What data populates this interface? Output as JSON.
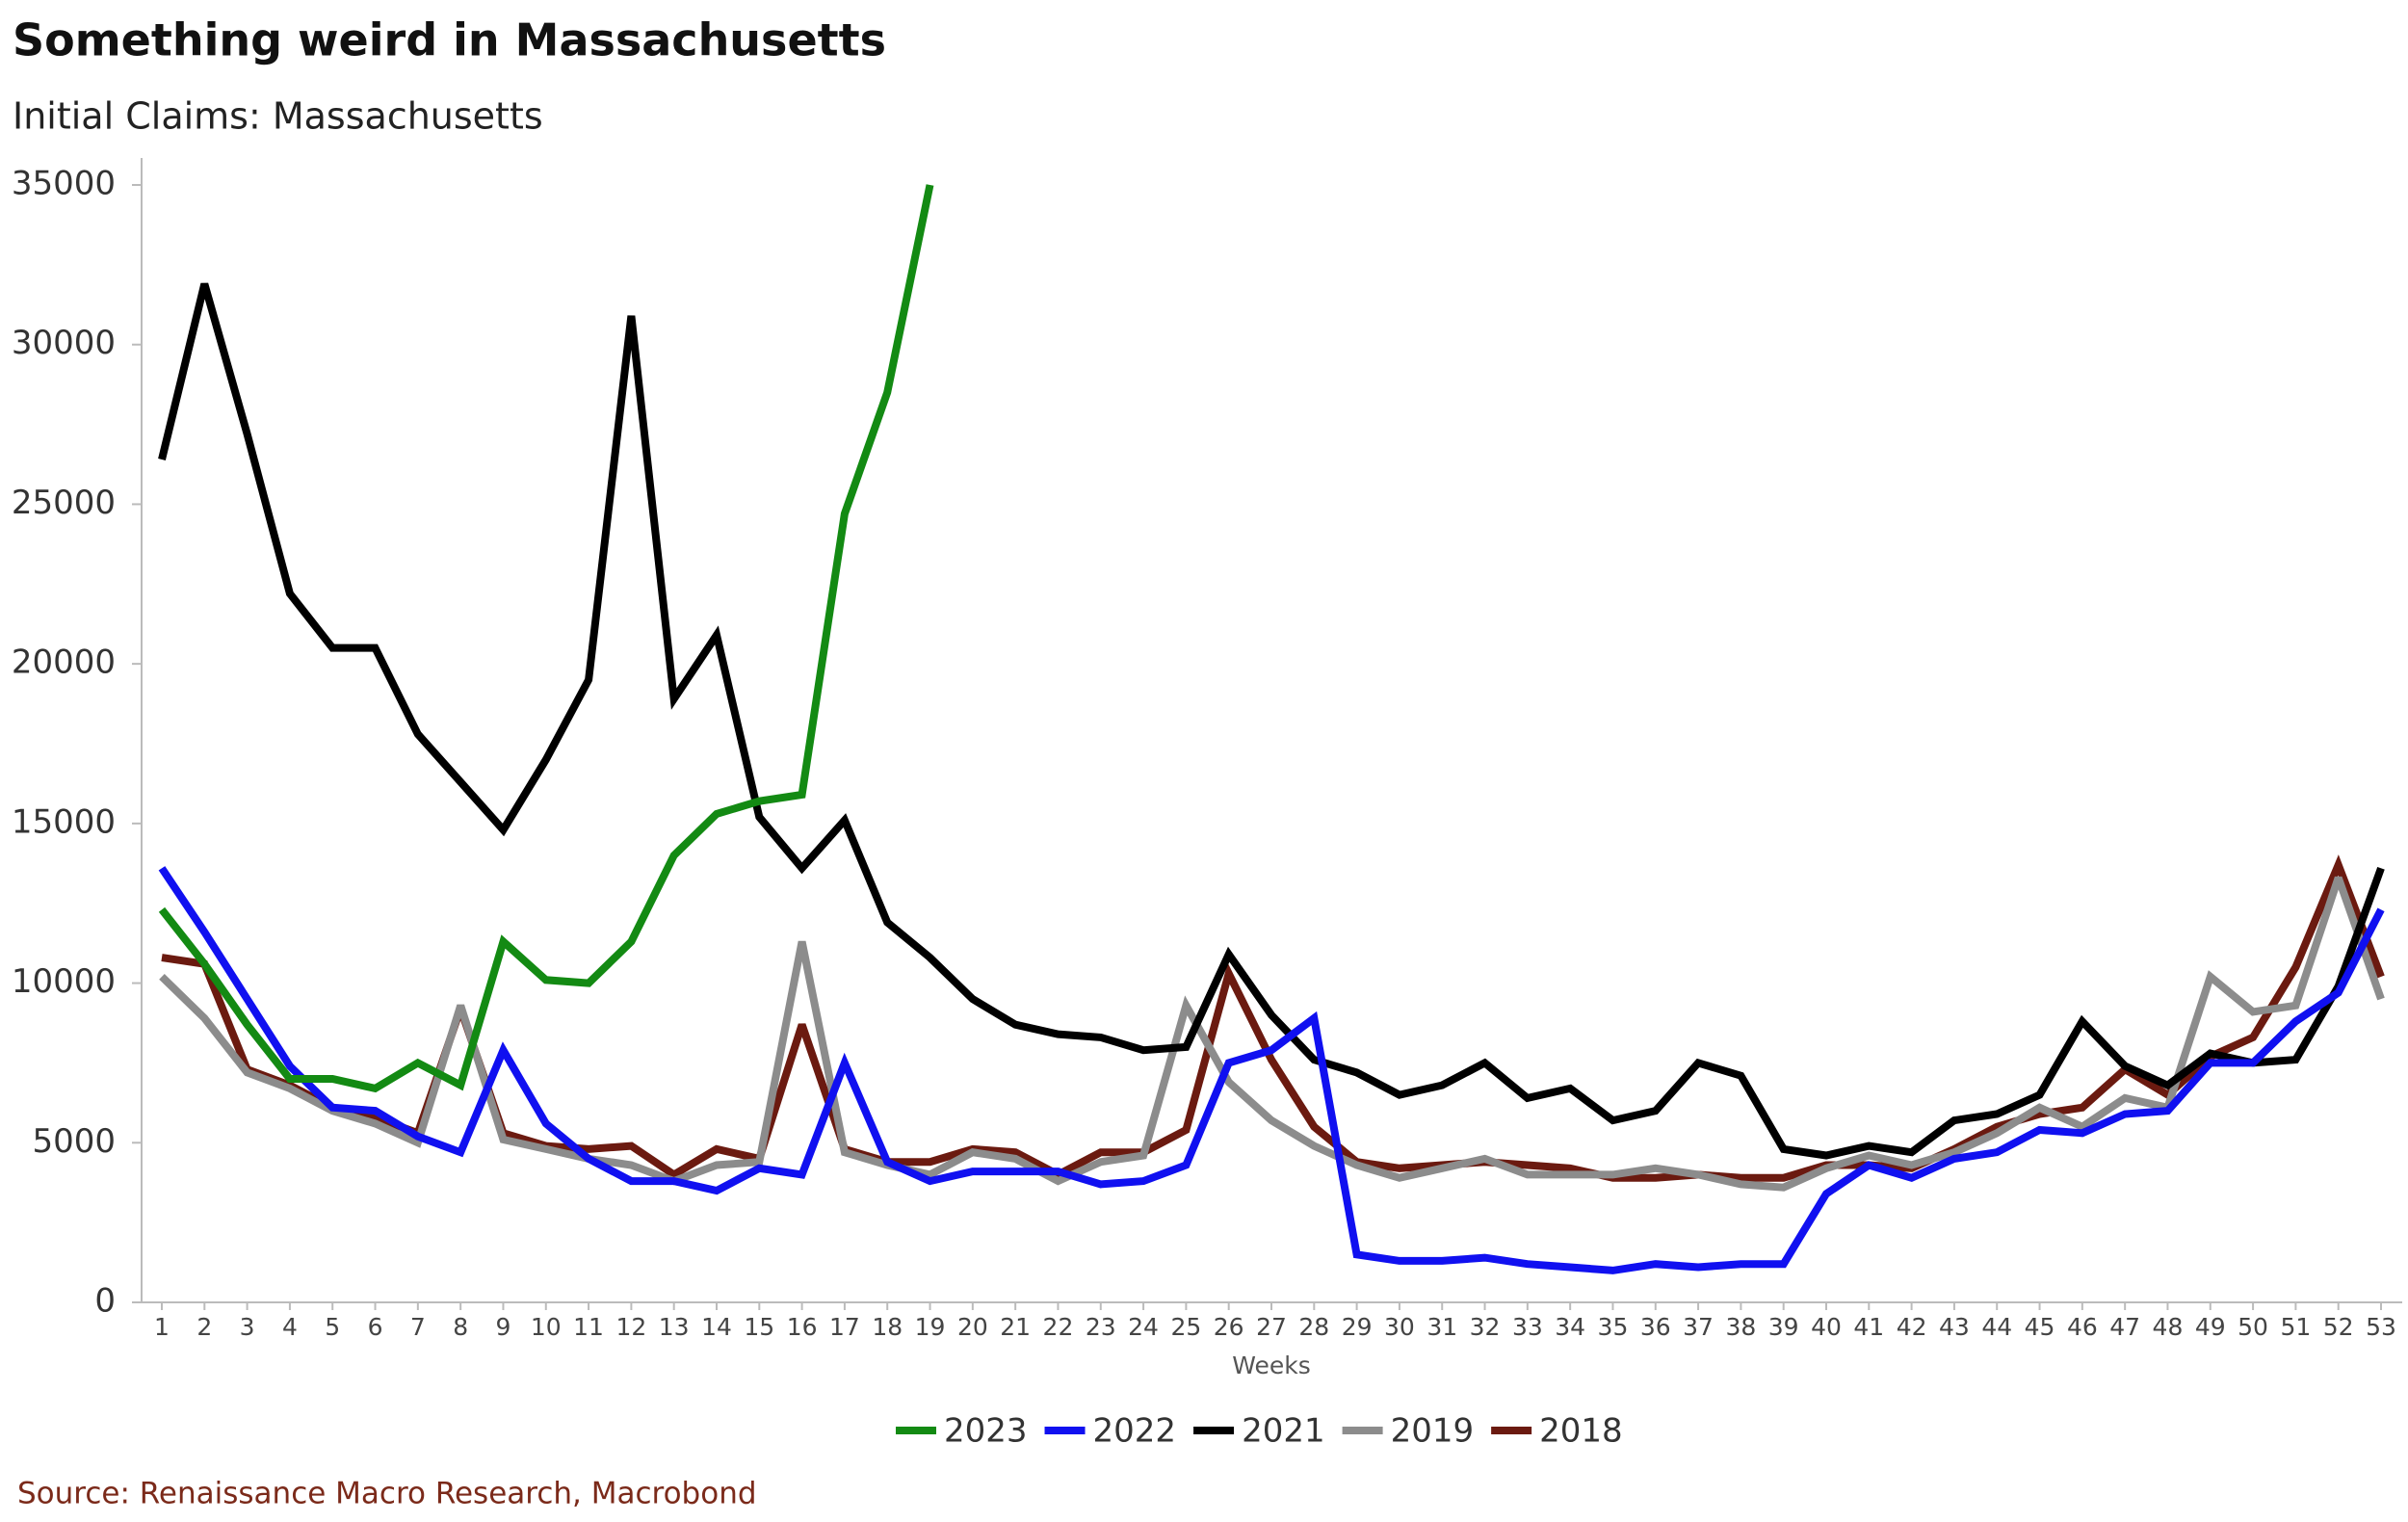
{
  "chart_data": {
    "type": "line",
    "title": "Something weird in Massachusetts",
    "subtitle": "Initial Claims: Massachusetts",
    "xlabel": "Weeks",
    "source": "Source: Renaissance Macro Research, Macrobond",
    "categories": [
      "1",
      "2",
      "3",
      "4",
      "5",
      "6",
      "7",
      "8",
      "9",
      "10",
      "11",
      "12",
      "13",
      "14",
      "15",
      "16",
      "17",
      "18",
      "19",
      "20",
      "21",
      "22",
      "23",
      "24",
      "25",
      "26",
      "27",
      "28",
      "29",
      "30",
      "31",
      "32",
      "33",
      "34",
      "35",
      "36",
      "37",
      "38",
      "39",
      "40",
      "41",
      "42",
      "43",
      "44",
      "45",
      "46",
      "47",
      "48",
      "49",
      "50",
      "51",
      "52",
      "53"
    ],
    "ylim": [
      0,
      35000
    ],
    "yticks": [
      0,
      5000,
      10000,
      15000,
      20000,
      25000,
      30000,
      35000
    ],
    "grid": false,
    "legend": "bottom",
    "series": [
      {
        "name": "2023",
        "color": "#138a13",
        "values": [
          12300,
          10600,
          8700,
          7000,
          7000,
          6700,
          7500,
          6800,
          11300,
          10100,
          10000,
          11300,
          14000,
          15300,
          15700,
          15900,
          24700,
          28500,
          35000,
          null,
          null,
          null,
          null,
          null,
          null,
          null,
          null,
          null,
          null,
          null,
          null,
          null,
          null,
          null,
          null,
          null,
          null,
          null,
          null,
          null,
          null,
          null,
          null,
          null,
          null,
          null,
          null,
          null,
          null,
          null,
          null,
          null,
          null
        ]
      },
      {
        "name": "2022",
        "color": "#1010f0",
        "values": [
          13600,
          11600,
          9500,
          7400,
          6100,
          6000,
          5200,
          4700,
          7900,
          5600,
          4500,
          3800,
          3800,
          3500,
          4200,
          4000,
          7500,
          4400,
          3800,
          4100,
          4100,
          4100,
          3700,
          3800,
          4300,
          7500,
          7900,
          8900,
          1500,
          1300,
          1300,
          1400,
          1200,
          1100,
          1000,
          1200,
          1100,
          1200,
          1200,
          3400,
          4300,
          3900,
          4500,
          4700,
          5400,
          5300,
          5900,
          6000,
          7500,
          7500,
          8800,
          9700,
          12300
        ]
      },
      {
        "name": "2021",
        "color": "#000000",
        "values": [
          26400,
          31900,
          27200,
          22200,
          20500,
          20500,
          17800,
          16300,
          14800,
          17000,
          19500,
          30900,
          18900,
          20900,
          15200,
          13600,
          15100,
          11900,
          10800,
          9500,
          8700,
          8400,
          8300,
          7900,
          8000,
          10900,
          9000,
          7600,
          7200,
          6500,
          6800,
          7500,
          6400,
          6700,
          5700,
          6000,
          7500,
          7100,
          4800,
          4600,
          4900,
          4700,
          5700,
          5900,
          6500,
          8800,
          7400,
          6800,
          7800,
          7500,
          7600,
          9900,
          13600
        ]
      },
      {
        "name": "2019",
        "color": "#8c8c8c",
        "values": [
          10200,
          8900,
          7200,
          6700,
          6000,
          5600,
          5000,
          9300,
          5100,
          4800,
          4500,
          4300,
          3800,
          4300,
          4400,
          11300,
          4700,
          4300,
          4000,
          4700,
          4500,
          3800,
          4400,
          4600,
          9300,
          6900,
          5700,
          4900,
          4300,
          3900,
          4200,
          4500,
          4000,
          4000,
          4000,
          4200,
          4000,
          3700,
          3600,
          4200,
          4600,
          4300,
          4700,
          5300,
          6100,
          5500,
          6400,
          6100,
          10200,
          9100,
          9300,
          13300,
          9500
        ]
      },
      {
        "name": "2018",
        "color": "#6b1a10",
        "values": [
          10800,
          10600,
          7300,
          6800,
          6100,
          5800,
          5300,
          9200,
          5300,
          4900,
          4800,
          4900,
          4000,
          4800,
          4500,
          8700,
          4800,
          4400,
          4400,
          4800,
          4700,
          4000,
          4700,
          4700,
          5400,
          10300,
          7600,
          5500,
          4400,
          4200,
          4300,
          4400,
          4300,
          4200,
          3900,
          3900,
          4000,
          3900,
          3900,
          4300,
          4300,
          4200,
          4800,
          5500,
          5900,
          6100,
          7300,
          6500,
          7700,
          8300,
          10500,
          13700,
          10200
        ]
      }
    ]
  }
}
